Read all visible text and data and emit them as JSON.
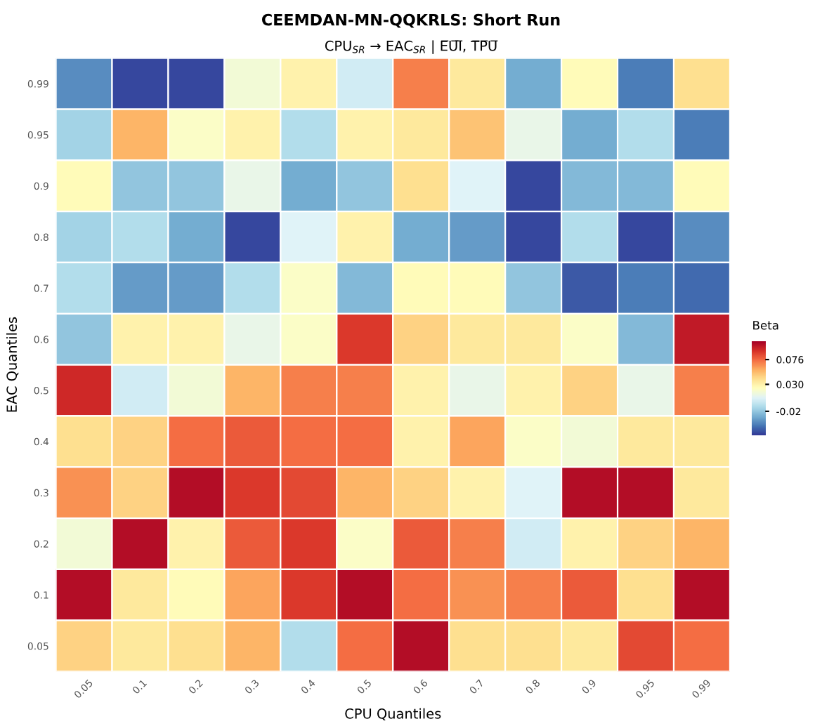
{
  "chart_data": {
    "type": "heatmap",
    "title": "CEEMDAN-MN-QQKRLS: Short Run",
    "subtitle": "CPU$_{SR}$ → EAC$_{SR}$ | E̅U̅I̅, T̅P̅U̅",
    "xlabel": "CPU Quantiles",
    "ylabel": "EAC Quantiles",
    "clabel": "Beta",
    "categories": [
      "0.05",
      "0.1",
      "0.2",
      "0.3",
      "0.4",
      "0.5",
      "0.6",
      "0.7",
      "0.8",
      "0.9",
      "0.95",
      "0.99"
    ],
    "y_categories": [
      "0.99",
      "0.95",
      "0.9",
      "0.8",
      "0.7",
      "0.6",
      "0.5",
      "0.4",
      "0.3",
      "0.2",
      "0.1",
      "0.05"
    ],
    "cells": [
      [
        -0.04,
        -0.06,
        -0.06,
        0.015,
        0.03,
        0.0,
        0.07,
        0.035,
        -0.03,
        0.025,
        -0.045,
        0.04
      ],
      [
        -0.015,
        0.055,
        0.02,
        0.03,
        -0.01,
        0.03,
        0.035,
        0.05,
        0.01,
        -0.03,
        -0.01,
        -0.045
      ],
      [
        0.025,
        -0.02,
        -0.02,
        0.01,
        -0.03,
        -0.02,
        0.04,
        0.005,
        -0.06,
        -0.025,
        -0.025,
        0.025
      ],
      [
        -0.015,
        -0.01,
        -0.03,
        -0.06,
        0.005,
        0.03,
        -0.03,
        -0.035,
        -0.06,
        -0.01,
        -0.06,
        -0.04
      ],
      [
        -0.01,
        -0.035,
        -0.035,
        -0.01,
        0.02,
        -0.025,
        0.025,
        0.025,
        -0.02,
        -0.055,
        -0.045,
        -0.05
      ],
      [
        -0.02,
        0.03,
        0.03,
        0.01,
        0.02,
        0.09,
        0.045,
        0.035,
        0.035,
        0.02,
        -0.025,
        0.1
      ],
      [
        0.095,
        0.0,
        0.015,
        0.055,
        0.07,
        0.07,
        0.03,
        0.01,
        0.03,
        0.045,
        0.01,
        0.07
      ],
      [
        0.04,
        0.045,
        0.075,
        0.08,
        0.075,
        0.075,
        0.03,
        0.06,
        0.02,
        0.015,
        0.035,
        0.035
      ],
      [
        0.065,
        0.045,
        0.105,
        0.09,
        0.085,
        0.055,
        0.045,
        0.03,
        0.005,
        0.105,
        0.105,
        0.035
      ],
      [
        0.015,
        0.105,
        0.03,
        0.08,
        0.09,
        0.02,
        0.08,
        0.07,
        0.0,
        0.03,
        0.045,
        0.055
      ],
      [
        0.105,
        0.035,
        0.025,
        0.06,
        0.09,
        0.105,
        0.075,
        0.065,
        0.07,
        0.08,
        0.04,
        0.105
      ],
      [
        0.045,
        0.035,
        0.04,
        0.055,
        -0.01,
        0.075,
        0.105,
        0.04,
        0.04,
        0.035,
        0.085,
        0.075
      ]
    ],
    "clim": [
      -0.065,
      0.11
    ],
    "cticks": [
      -0.02,
      {
        "value": 0.03,
        "label": "0.030"
      },
      0.076
    ]
  }
}
